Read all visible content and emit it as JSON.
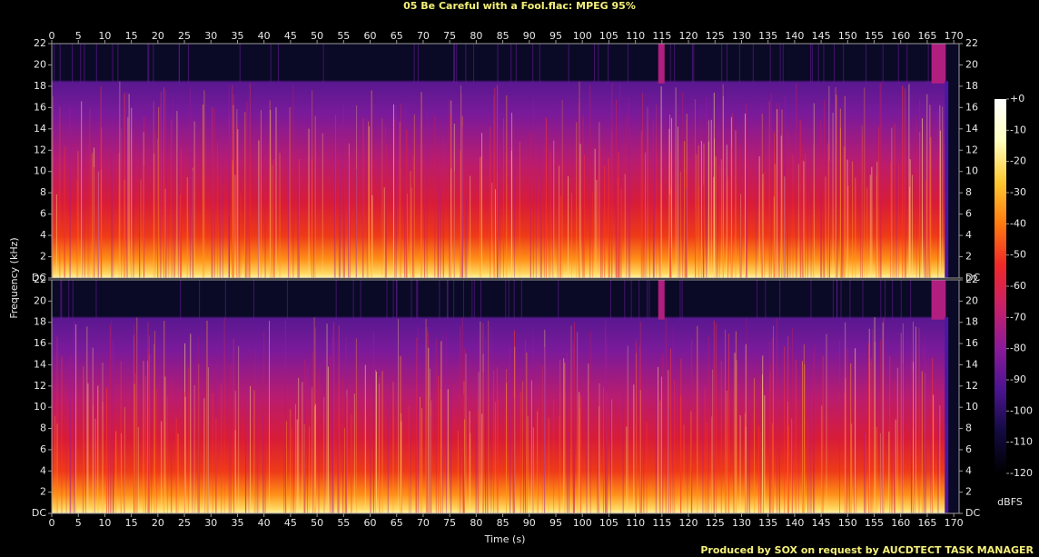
{
  "chart_data": {
    "type": "spectrogram",
    "title": "05 Be Careful with a Fool.flac: MPEG 95%",
    "x_label": "Time (s)",
    "y_label": "Frequency (kHz)",
    "credit": "Produced by SOX on request by AUCDTECT TASK MANAGER",
    "xlim": [
      0,
      171
    ],
    "xticks": [
      0,
      5,
      10,
      15,
      20,
      25,
      30,
      35,
      40,
      45,
      50,
      55,
      60,
      65,
      70,
      75,
      80,
      85,
      90,
      95,
      100,
      105,
      110,
      115,
      120,
      125,
      130,
      135,
      140,
      145,
      150,
      155,
      160,
      165,
      170
    ],
    "ylim": [
      0,
      22
    ],
    "yticks": [
      {
        "value": 0,
        "label": "DC"
      },
      2,
      4,
      6,
      8,
      10,
      12,
      14,
      16,
      18,
      20,
      22
    ],
    "colorbar": {
      "label": "dBFS",
      "lim": [
        -120,
        0
      ],
      "ticks": [
        {
          "value": 0,
          "label": "+0"
        },
        -10,
        -20,
        -30,
        -40,
        -50,
        -60,
        -70,
        -80,
        -90,
        -100,
        -110,
        -120
      ],
      "colors": [
        "#000000",
        "#120a40",
        "#4a1490",
        "#8a1a9a",
        "#c8206a",
        "#f02828",
        "#ff7a10",
        "#ffc830",
        "#ffffc0",
        "#ffffff"
      ]
    }
  }
}
